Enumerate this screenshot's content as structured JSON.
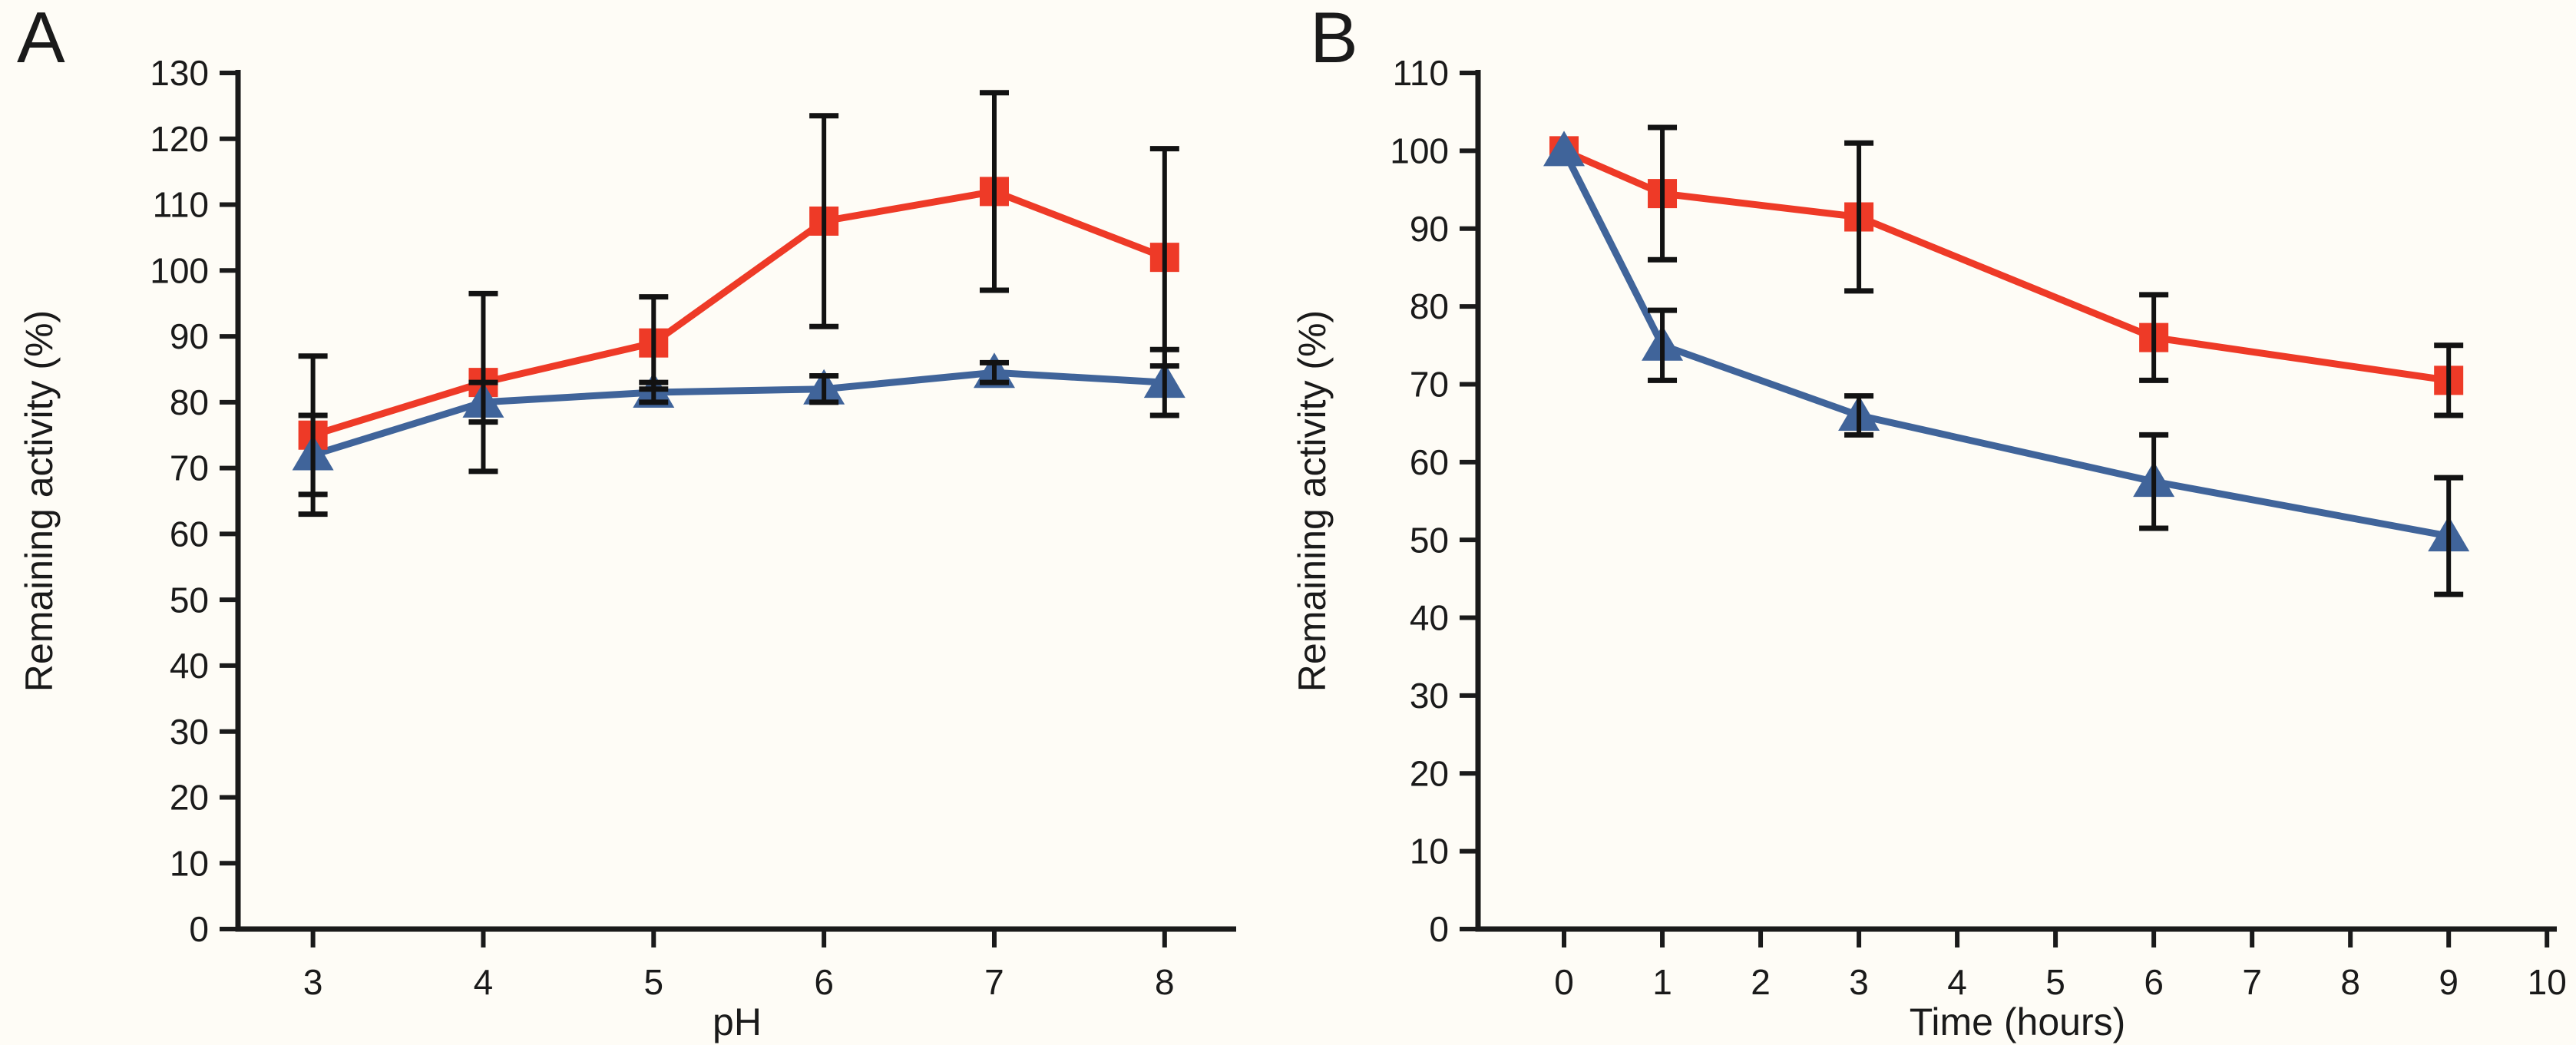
{
  "figure": {
    "background_color": "#fefcf6",
    "axis_color": "#1a1a1a",
    "error_bar_color": "#121212"
  },
  "chart_data": [
    {
      "panel_label": "A",
      "type": "line",
      "title": "",
      "xlabel": "pH",
      "ylabel": "Remaining activity (%)",
      "ylim": [
        0,
        130
      ],
      "ytick_step": 10,
      "xlim": [
        2.56,
        8.42
      ],
      "xticks": [
        3,
        4,
        5,
        6,
        7,
        8
      ],
      "grid": false,
      "legend": "none",
      "series": [
        {
          "name": "red-squares",
          "marker": "square",
          "color": "#ee3a27",
          "x": [
            3,
            4,
            5,
            6,
            7,
            8
          ],
          "y": [
            75,
            83,
            89,
            107.5,
            112,
            102
          ],
          "yerr": [
            12,
            13.5,
            7,
            16,
            15,
            16.5
          ]
        },
        {
          "name": "blue-triangles",
          "marker": "triangle",
          "color": "#40649a",
          "x": [
            3,
            4,
            5,
            6,
            7,
            8
          ],
          "y": [
            72,
            80,
            81.5,
            82,
            84.5,
            83
          ],
          "yerr": [
            6,
            3,
            1.5,
            2,
            1.5,
            5
          ]
        }
      ]
    },
    {
      "panel_label": "B",
      "type": "line",
      "title": "",
      "xlabel": "Time (hours)",
      "ylabel": "Remaining activity (%)",
      "ylim": [
        0,
        110
      ],
      "ytick_step": 10,
      "xlim": [
        -0.875,
        10.1
      ],
      "xticks": [
        0,
        1,
        2,
        3,
        4,
        5,
        6,
        7,
        8,
        9,
        10
      ],
      "grid": false,
      "legend": "none",
      "series": [
        {
          "name": "red-squares",
          "marker": "square",
          "color": "#ee3a27",
          "x": [
            0,
            1,
            3,
            6,
            9
          ],
          "y": [
            100,
            94.5,
            91.5,
            76,
            70.5
          ],
          "yerr": [
            0,
            8.5,
            9.5,
            5.5,
            4.5
          ]
        },
        {
          "name": "blue-triangles",
          "marker": "triangle",
          "color": "#40649a",
          "x": [
            0,
            1,
            3,
            6,
            9
          ],
          "y": [
            100,
            75,
            66,
            57.5,
            50.5
          ],
          "yerr": [
            0,
            4.5,
            2.5,
            6,
            7.5
          ]
        }
      ]
    }
  ]
}
